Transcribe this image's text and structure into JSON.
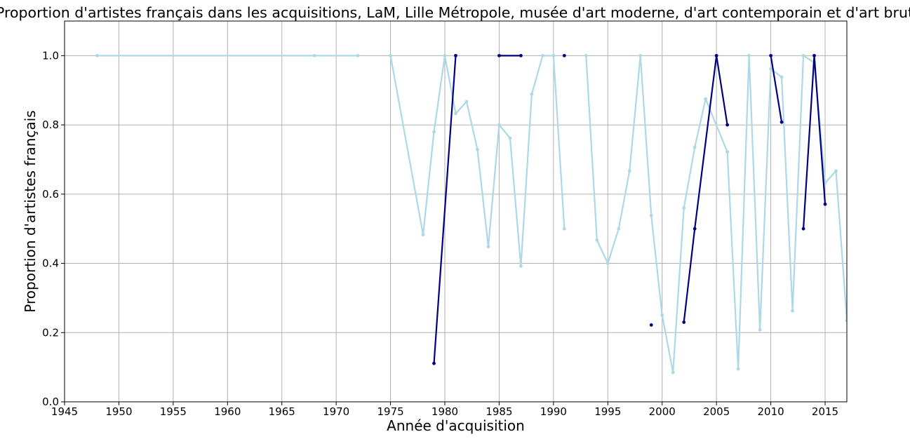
{
  "chart_data": {
    "type": "line",
    "title": "Proportion d'artistes français dans les acquisitions, LaM, Lille Métropole, musée d'art moderne, d'art contemporain et d'art brut",
    "xlabel": "Année d'acquisition",
    "ylabel": "Proportion d'artistes français",
    "xlim": [
      1945,
      2017
    ],
    "ylim": [
      0,
      1.1
    ],
    "xticks": [
      1945,
      1950,
      1955,
      1960,
      1965,
      1970,
      1975,
      1980,
      1985,
      1990,
      1995,
      2000,
      2005,
      2010,
      2015
    ],
    "yticks": [
      0.0,
      0.2,
      0.4,
      0.6,
      0.8,
      1.0
    ],
    "xtick_labels": [
      "1945",
      "1950",
      "1955",
      "1960",
      "1965",
      "1970",
      "1975",
      "1980",
      "1985",
      "1990",
      "1995",
      "2000",
      "2005",
      "2010",
      "2015"
    ],
    "ytick_labels": [
      "0.0",
      "0.2",
      "0.4",
      "0.6",
      "0.8",
      "1.0"
    ],
    "grid": true,
    "series": [
      {
        "color": "#add8e6",
        "segments": [
          [
            [
              1948,
              1.0
            ],
            [
              1968,
              1.0
            ],
            [
              1972,
              1.0
            ]
          ],
          [
            [
              1975,
              1.0
            ],
            [
              1978,
              0.483
            ],
            [
              1979,
              0.78
            ],
            [
              1980,
              1.0
            ],
            [
              1981,
              0.833
            ],
            [
              1982,
              0.867
            ],
            [
              1983,
              0.729
            ],
            [
              1984,
              0.448
            ],
            [
              1985,
              0.8
            ],
            [
              1986,
              0.762
            ],
            [
              1987,
              0.392
            ],
            [
              1988,
              0.889
            ],
            [
              1989,
              1.0
            ],
            [
              1990,
              1.0
            ],
            [
              1991,
              0.5
            ]
          ],
          [
            [
              1993,
              1.0
            ],
            [
              1994,
              0.467
            ],
            [
              1995,
              0.4
            ],
            [
              1996,
              0.5
            ],
            [
              1997,
              0.667
            ],
            [
              1998,
              1.0
            ],
            [
              1999,
              0.538
            ],
            [
              2000,
              0.25
            ],
            [
              2001,
              0.085
            ],
            [
              2002,
              0.56
            ],
            [
              2003,
              0.735
            ],
            [
              2004,
              0.875
            ],
            [
              2006,
              0.722
            ],
            [
              2007,
              0.095
            ],
            [
              2008,
              1.0
            ],
            [
              2009,
              0.208
            ],
            [
              2010,
              0.962
            ],
            [
              2011,
              0.938
            ],
            [
              2012,
              0.263
            ],
            [
              2013,
              1.0
            ],
            [
              2014,
              0.98
            ],
            [
              2015,
              0.632
            ],
            [
              2016,
              0.667
            ],
            [
              2017,
              0.235
            ]
          ]
        ]
      },
      {
        "color": "#000080",
        "segments": [
          [
            [
              1979,
              0.111
            ],
            [
              1981,
              1.0
            ]
          ],
          [
            [
              1985,
              1.0
            ],
            [
              1987,
              1.0
            ]
          ],
          [
            [
              1991,
              1.0
            ]
          ],
          [
            [
              1999,
              0.222
            ]
          ],
          [
            [
              2002,
              0.23
            ],
            [
              2003,
              0.5
            ],
            [
              2005,
              1.0
            ],
            [
              2006,
              0.8
            ]
          ],
          [
            [
              2010,
              1.0
            ],
            [
              2011,
              0.808
            ]
          ],
          [
            [
              2013,
              0.5
            ],
            [
              2014,
              1.0
            ],
            [
              2015,
              0.571
            ]
          ]
        ]
      }
    ]
  }
}
